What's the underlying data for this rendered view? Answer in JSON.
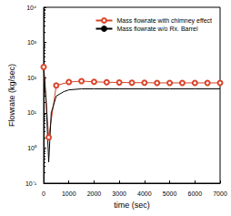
{
  "chart_data": {
    "type": "line",
    "x_label": "time (sec)",
    "y_label": "Flowrate (kg/sec)",
    "log": "y",
    "xlim": [
      0,
      7000
    ],
    "xticks": [
      0,
      1000,
      2000,
      3000,
      4000,
      5000,
      6000,
      7000
    ],
    "ylim": [
      0.1,
      10000
    ],
    "yticks": [
      {
        "value": 0.1,
        "label": "10⁻¹"
      },
      {
        "value": 1,
        "label": "10⁰"
      },
      {
        "value": 10,
        "label": "10¹"
      },
      {
        "value": 100,
        "label": "10²"
      },
      {
        "value": 1000,
        "label": "10³"
      },
      {
        "value": 10000,
        "label": "10⁴"
      }
    ],
    "grid": false,
    "legend": "upper right",
    "series": [
      {
        "name": "Mass flowrate with chimney effect",
        "color": "#d9452b",
        "marker": "circle",
        "x": [
          0,
          200,
          500,
          1000,
          1500,
          2000,
          2500,
          3000,
          3500,
          4000,
          4500,
          5000,
          5500,
          6000,
          6500,
          7000
        ],
        "values": [
          200,
          2,
          60,
          75,
          80,
          76,
          74,
          73,
          72,
          72,
          71,
          71,
          71,
          71,
          71,
          71
        ]
      },
      {
        "name": "Mass flowrate w/o Rx. Barrel",
        "color": "#000000",
        "marker": "none",
        "x": [
          0,
          100,
          200,
          300,
          500,
          800,
          1000,
          1500,
          2000,
          3000,
          4000,
          5000,
          6000,
          7000
        ],
        "values": [
          200,
          20,
          0.4,
          10,
          30,
          40,
          45,
          48,
          48,
          48,
          48,
          48,
          48,
          48
        ]
      }
    ]
  }
}
